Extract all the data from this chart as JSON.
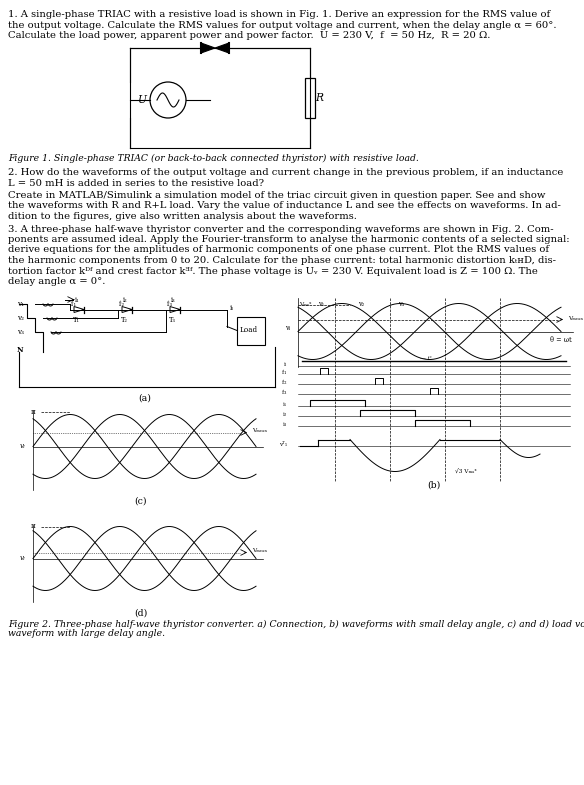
{
  "bg_color": "#ffffff",
  "text_color": "#000000",
  "font_size": 7.2,
  "q1_lines": [
    "1. A single-phase TRIAC with a resistive load is shown in Fig. 1. Derive an expression for the RMS value of",
    "the output voltage. Calculate the RMS values for output voltage and current, when the delay angle α = 60°.",
    "Calculate the load power, apparent power and power factor.  U = 230 V,  f  = 50 Hz,  R = 20 Ω."
  ],
  "fig1_caption": "Figure 1. Single-phase TRIAC (or back-to-back connected thyristor) with resistive load.",
  "q2_lines": [
    "2. How do the waveforms of the output voltage and current change in the previous problem, if an inductance",
    "L = 50 mH is added in series to the resistive load?"
  ],
  "matlab_lines": [
    "Create in MATLAB/Simulink a simulation model of the triac circuit given in question paper. See and show",
    "the waveforms with R and R+L load. Vary the value of inductance L and see the effects on waveforms. In ad-",
    "dition to the figures, give also written analysis about the waveforms."
  ],
  "q3_lines": [
    "3. A three-phase half-wave thyristor converter and the corresponding waveforms are shown in Fig. 2. Com-",
    "ponents are assumed ideal. Apply the Fourier-transform to analyse the harmonic contents of a selected signal:",
    "derive equations for the amplitudes of harmonic components of one phase current. Plot the RMS values of",
    "the harmonic components from 0 to 20. Calculate for the phase current: total harmonic distortion kₜʜD, dis-",
    "tortion factor kᴰᶠ and crest factor kᴲᶠ. The phase voltage is Uᵥ = 230 V. Equivalent load is Z = 100 Ω. The",
    "delay angle α = 0°."
  ],
  "fig2_caption_lines": [
    "Figure 2. Three-phase half-wave thyristor converter. a) Connection, b) waveforms with small delay angle, c) and d) load voltage",
    "waveform with large delay angle."
  ]
}
